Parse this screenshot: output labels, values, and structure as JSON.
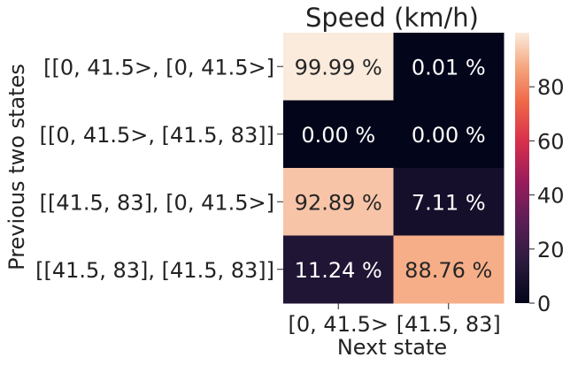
{
  "chart_data": {
    "type": "heatmap",
    "title": "Speed (km/h)",
    "xlabel": "Next state",
    "ylabel": "Previous two states",
    "x_categories": [
      "[0, 41.5>",
      "[41.5, 83]"
    ],
    "y_categories": [
      "[[0, 41.5>, [0, 41.5>]",
      "[[0, 41.5>, [41.5, 83]]",
      "[[41.5, 83], [0, 41.5>]",
      "[[41.5, 83], [41.5, 83]]"
    ],
    "values": [
      [
        99.99,
        0.01
      ],
      [
        0.0,
        0.0
      ],
      [
        92.89,
        7.11
      ],
      [
        11.24,
        88.76
      ]
    ],
    "cell_labels": [
      [
        "99.99 %",
        "0.01 %"
      ],
      [
        "0.00 %",
        "0.00 %"
      ],
      [
        "92.89 %",
        "7.11 %"
      ],
      [
        "11.24 %",
        "88.76 %"
      ]
    ],
    "colorbar": {
      "min": 0,
      "max": 100,
      "ticks": [
        0,
        20,
        40,
        60,
        80
      ],
      "tick_labels": [
        "0",
        "20",
        "40",
        "60",
        "80"
      ],
      "colormap": "rocket"
    }
  }
}
